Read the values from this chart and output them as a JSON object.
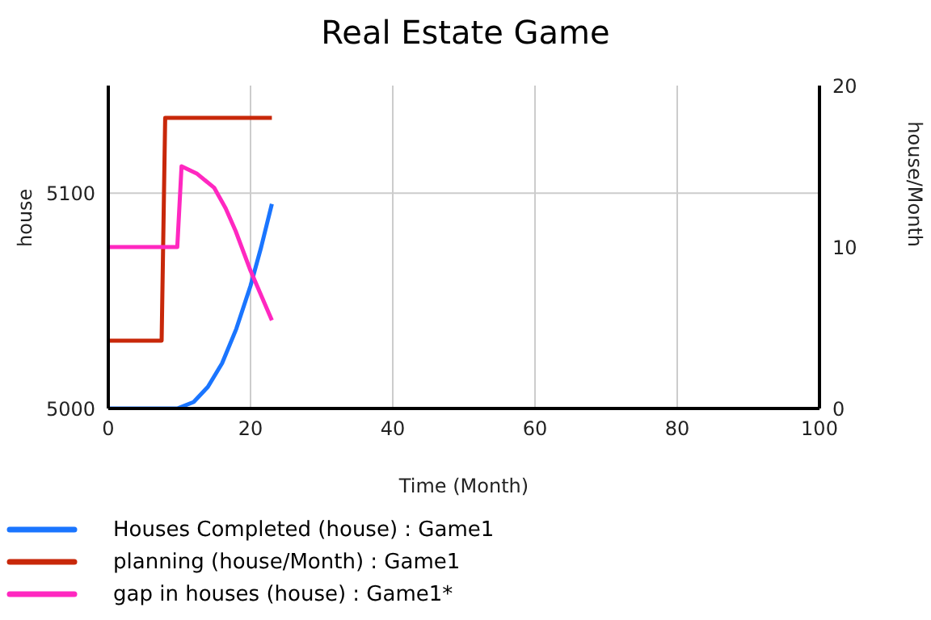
{
  "chart_data": {
    "type": "line",
    "title": "Real Estate Game",
    "xlabel": "Time (Month)",
    "ylabel": "house",
    "y2label": "house/Month",
    "xlim": [
      0,
      100
    ],
    "xticks": [
      0,
      20,
      40,
      60,
      80,
      100
    ],
    "ylim": [
      5000,
      5150
    ],
    "yticks": [
      5000,
      5100
    ],
    "y2lim": [
      0,
      20
    ],
    "y2ticks": [
      0,
      10,
      20
    ],
    "grid": true,
    "legend": "bottom",
    "marker": "none",
    "line_style": "solid",
    "series": [
      {
        "name": "Houses Completed (house) : Game1",
        "color": "#1a75ff",
        "x": [
          0,
          9.7,
          12,
          14,
          16,
          18,
          20,
          21.5,
          23
        ],
        "values": [
          5000,
          5000,
          5003,
          5010,
          5021,
          5037,
          5057,
          5075,
          5095
        ]
      },
      {
        "name": "planning (house/Month) : Game1",
        "color": "#c8280a",
        "axis": "y2",
        "x": [
          0,
          7.5,
          8,
          23
        ],
        "values": [
          4.2,
          4.2,
          18,
          18
        ]
      },
      {
        "name": "gap in houses (house) : Game1*",
        "color": "#ff28c0",
        "x": [
          0,
          9.7,
          10.3,
          12.5,
          14.9,
          16.5,
          17.9,
          20,
          23
        ],
        "values": [
          5075,
          5075,
          5112.5,
          5109,
          5102.5,
          5093,
          5082.5,
          5064,
          5041
        ]
      }
    ]
  }
}
